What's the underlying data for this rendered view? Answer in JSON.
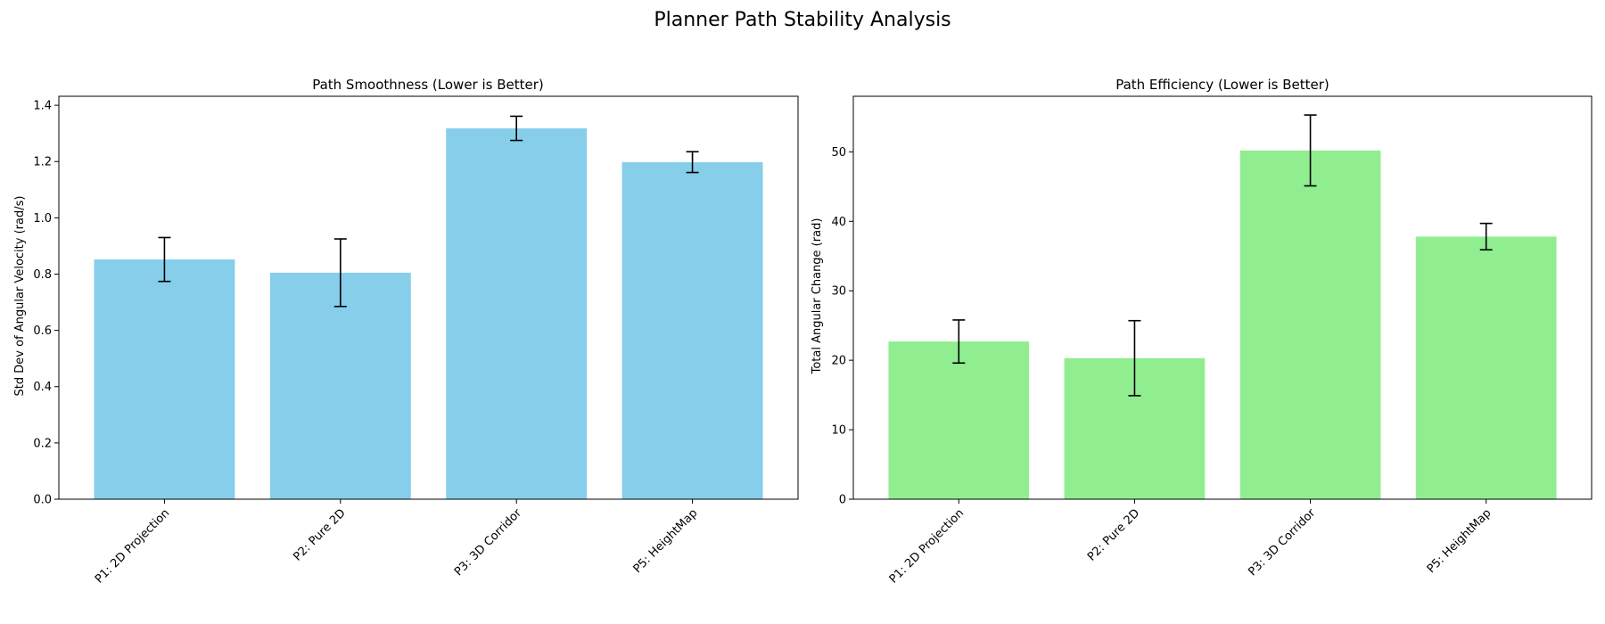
{
  "figure": {
    "suptitle": "Planner Path Stability Analysis"
  },
  "chart_data": [
    {
      "type": "bar",
      "title": "Path Smoothness (Lower is Better)",
      "xlabel": "",
      "ylabel": "Std Dev of Angular Velocity (rad/s)",
      "categories": [
        "P1: 2D Projection",
        "P2: Pure 2D",
        "P3: 3D Corridor",
        "P5: HeightMap"
      ],
      "values": [
        0.852,
        0.805,
        1.318,
        1.198
      ],
      "errors": [
        0.078,
        0.12,
        0.043,
        0.037
      ],
      "ylim": [
        0,
        1.432
      ],
      "yticks": [
        0.0,
        0.2,
        0.4,
        0.6,
        0.8,
        1.0,
        1.2,
        1.4
      ],
      "ytick_labels": [
        "0.0",
        "0.2",
        "0.4",
        "0.6",
        "0.8",
        "1.0",
        "1.2",
        "1.4"
      ],
      "color": "#87ceeb",
      "grid": false
    },
    {
      "type": "bar",
      "title": "Path Efficiency (Lower is Better)",
      "xlabel": "",
      "ylabel": "Total Angular Change (rad)",
      "categories": [
        "P1: 2D Projection",
        "P2: Pure 2D",
        "P3: 3D Corridor",
        "P5: HeightMap"
      ],
      "values": [
        22.7,
        20.3,
        50.2,
        37.8
      ],
      "errors": [
        3.1,
        5.4,
        5.1,
        1.9
      ],
      "ylim": [
        0,
        58.0
      ],
      "yticks": [
        0,
        10,
        20,
        30,
        40,
        50
      ],
      "ytick_labels": [
        "0",
        "10",
        "20",
        "30",
        "40",
        "50"
      ],
      "color": "#90ee90",
      "grid": false
    }
  ]
}
